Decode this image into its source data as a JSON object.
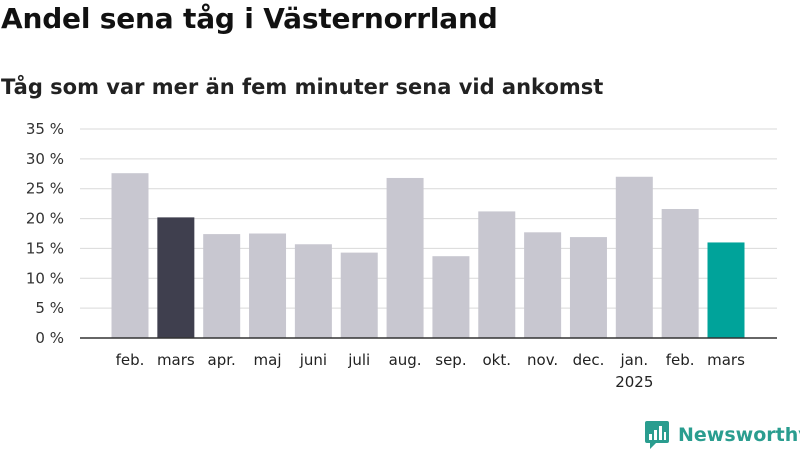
{
  "chart_data": {
    "type": "bar",
    "title": "Andel sena tåg i Västernorrland",
    "subtitle": "Tåg som var mer än fem minuter sena vid ankomst",
    "categories": [
      "feb.",
      "mars",
      "apr.",
      "maj",
      "juni",
      "juli",
      "aug.",
      "sep.",
      "okt.",
      "nov.",
      "dec.",
      "jan.",
      "feb.",
      "mars"
    ],
    "category_sublabels": [
      "",
      "",
      "",
      "",
      "",
      "",
      "",
      "",
      "",
      "",
      "",
      "2025",
      "",
      ""
    ],
    "values": [
      27.6,
      20.2,
      17.4,
      17.5,
      15.7,
      14.3,
      26.8,
      13.7,
      21.2,
      17.7,
      16.9,
      27.0,
      21.6,
      16.0
    ],
    "bar_colors": [
      "#c8c7d0",
      "#3f3f4e",
      "#c8c7d0",
      "#c8c7d0",
      "#c8c7d0",
      "#c8c7d0",
      "#c8c7d0",
      "#c8c7d0",
      "#c8c7d0",
      "#c8c7d0",
      "#c8c7d0",
      "#c8c7d0",
      "#c8c7d0",
      "#00a39a"
    ],
    "y_ticks": [
      0,
      5,
      10,
      15,
      20,
      25,
      30,
      35
    ],
    "y_tick_suffix": " %",
    "ylim": [
      0,
      35
    ],
    "grid": true
  },
  "brand": {
    "name": "Newsworthy",
    "color": "#2a9d8f"
  }
}
